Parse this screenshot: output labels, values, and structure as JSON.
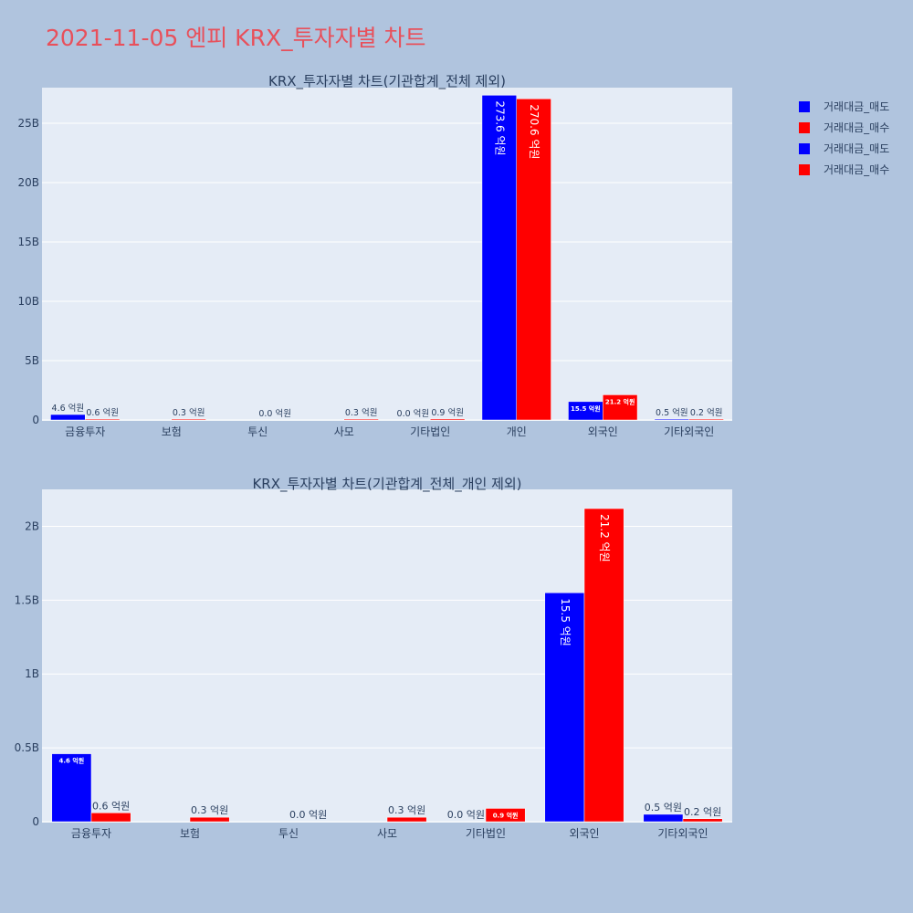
{
  "title": "2021-11-05 엔피 KRX_투자자별 차트",
  "colors": {
    "sell": "#0000ff",
    "buy": "#ff0000",
    "plot_bg": "#e5ecf6",
    "page_bg": "#b0c4de"
  },
  "legend": [
    {
      "name": "거래대금_매도",
      "color": "#0000ff"
    },
    {
      "name": "거래대금_매수",
      "color": "#ff0000"
    },
    {
      "name": "거래대금_매도",
      "color": "#0000ff"
    },
    {
      "name": "거래대금_매수",
      "color": "#ff0000"
    }
  ],
  "chart_data": [
    {
      "type": "bar",
      "title": "KRX_투자자별 차트(기관합계_전체 제외)",
      "categories": [
        "금융투자",
        "보험",
        "투신",
        "사모",
        "기타법인",
        "개인",
        "외국인",
        "기타외국인"
      ],
      "ylim": [
        0,
        28000000000
      ],
      "yticks": [
        0,
        5000000000,
        10000000000,
        15000000000,
        20000000000,
        25000000000
      ],
      "ytick_labels": [
        "0",
        "5B",
        "10B",
        "15B",
        "20B",
        "25B"
      ],
      "series": [
        {
          "name": "거래대금_매도",
          "values": [
            460000000,
            0,
            0,
            0,
            0,
            27360000000,
            1550000000,
            50000000
          ],
          "labels": [
            "4.6 억원",
            "",
            "",
            "",
            "0.0 억원",
            "273.6 억원",
            "15.5 억원",
            "0.5 억원"
          ]
        },
        {
          "name": "거래대금_매수",
          "values": [
            60000000,
            30000000,
            0,
            30000000,
            90000000,
            27060000000,
            2120000000,
            20000000
          ],
          "labels": [
            "0.6 억원",
            "0.3 억원",
            "0.0 억원",
            "0.3 억원",
            "0.9 억원",
            "270.6 억원",
            "21.2 억원",
            "0.2 억원"
          ]
        }
      ]
    },
    {
      "type": "bar",
      "title": "KRX_투자자별 차트(기관합계_전체_개인 제외)",
      "categories": [
        "금융투자",
        "보험",
        "투신",
        "사모",
        "기타법인",
        "외국인",
        "기타외국인"
      ],
      "ylim": [
        0,
        2250000000
      ],
      "yticks": [
        0,
        500000000,
        1000000000,
        1500000000,
        2000000000
      ],
      "ytick_labels": [
        "0",
        "0.5B",
        "1B",
        "1.5B",
        "2B"
      ],
      "series": [
        {
          "name": "거래대금_매도",
          "values": [
            460000000,
            0,
            0,
            0,
            0,
            1550000000,
            50000000
          ],
          "labels": [
            "4.6 억원",
            "",
            "",
            "",
            "0.0 억원",
            "15.5 억원",
            "0.5 억원"
          ]
        },
        {
          "name": "거래대금_매수",
          "values": [
            60000000,
            30000000,
            0,
            30000000,
            90000000,
            2120000000,
            20000000
          ],
          "labels": [
            "0.6 억원",
            "0.3 억원",
            "0.0 억원",
            "0.3 억원",
            "0.9 억원",
            "21.2 억원",
            "0.2 억원"
          ]
        }
      ]
    }
  ]
}
